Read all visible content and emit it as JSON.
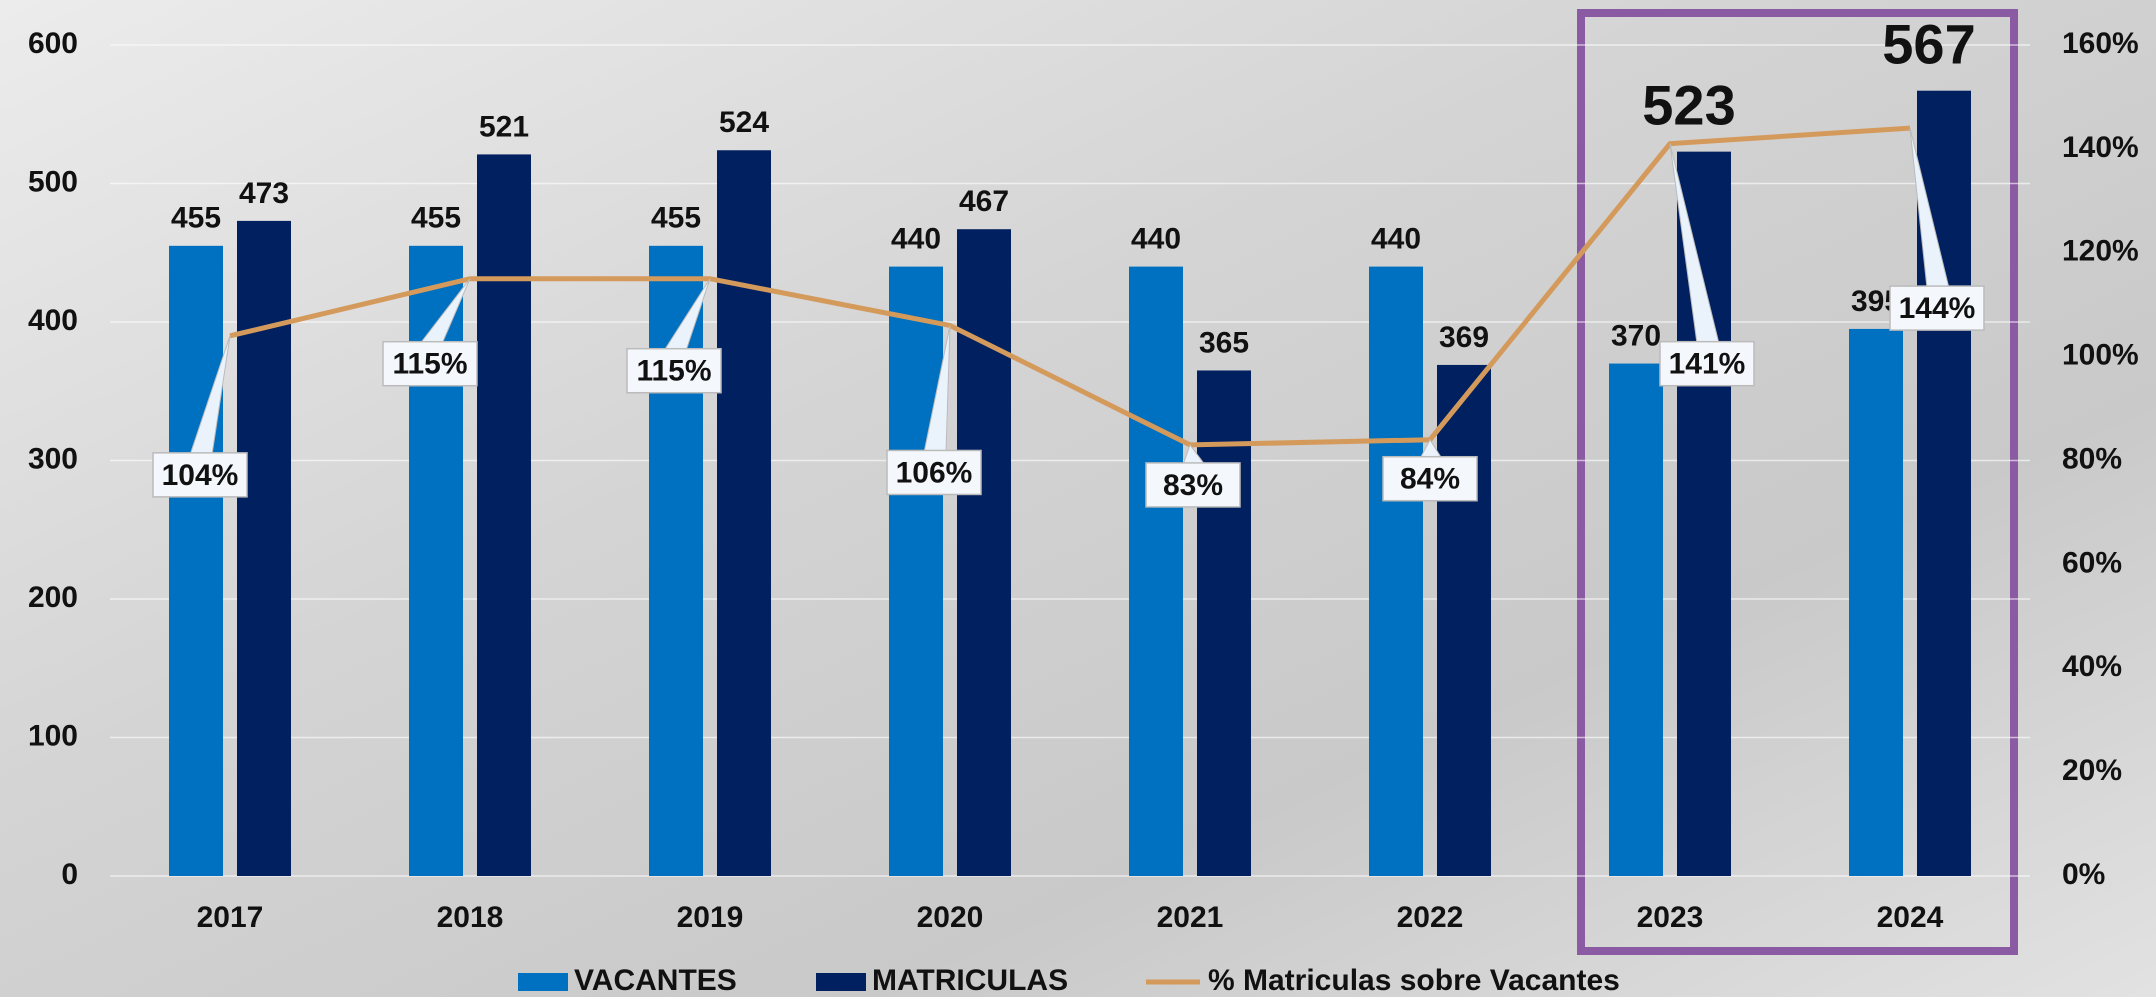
{
  "chart_data": {
    "type": "bar",
    "categories": [
      "2017",
      "2018",
      "2019",
      "2020",
      "2021",
      "2022",
      "2023",
      "2024"
    ],
    "series": [
      {
        "name": "VACANTES",
        "color": "#0070c0",
        "values": [
          455,
          455,
          455,
          440,
          440,
          440,
          370,
          395
        ]
      },
      {
        "name": "MATRICULAS",
        "color": "#002060",
        "values": [
          473,
          521,
          524,
          467,
          365,
          369,
          523,
          567
        ]
      },
      {
        "name": "% Matriculas sobre Vacantes",
        "color": "#d49a5c",
        "axis": "y2",
        "type": "line",
        "values": [
          104,
          115,
          115,
          106,
          83,
          84,
          141,
          144
        ],
        "value_labels": [
          "104%",
          "115%",
          "115%",
          "106%",
          "83%",
          "84%",
          "141%",
          "144%"
        ]
      }
    ],
    "ylim": [
      0,
      600
    ],
    "yticks": [
      0,
      100,
      200,
      300,
      400,
      500,
      600
    ],
    "y2lim": [
      0,
      160
    ],
    "y2ticks": [
      {
        "value": 0,
        "label": "0%"
      },
      {
        "value": 20,
        "label": "20%"
      },
      {
        "value": 40,
        "label": "40%"
      },
      {
        "value": 60,
        "label": "60%"
      },
      {
        "value": 80,
        "label": "80%"
      },
      {
        "value": 100,
        "label": "100%"
      },
      {
        "value": 120,
        "label": "120%"
      },
      {
        "value": 140,
        "label": "140%"
      },
      {
        "value": 160,
        "label": "160%"
      }
    ],
    "grid": true
  }
}
